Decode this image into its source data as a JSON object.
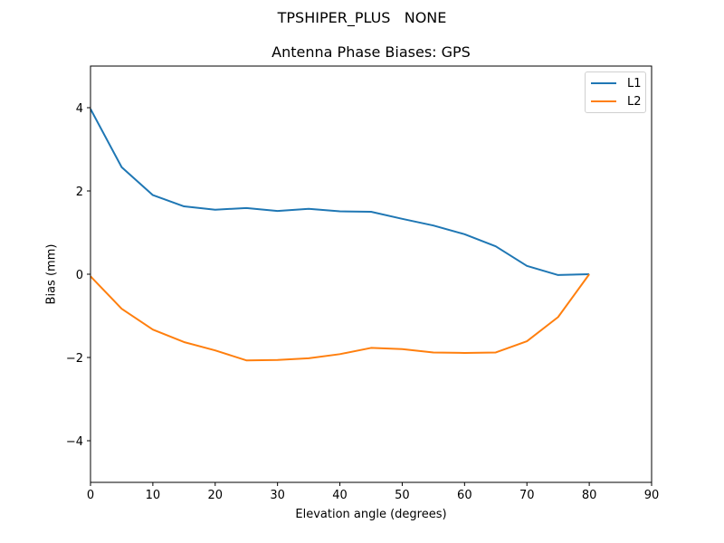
{
  "figure": {
    "suptitle": "TPSHIPER_PLUS   NONE",
    "title": "Antenna Phase Biases: GPS"
  },
  "axes": {
    "xlabel": "Elevation angle (degrees)",
    "ylabel": "Bias (mm)",
    "xticks": [
      "0",
      "10",
      "20",
      "30",
      "40",
      "50",
      "60",
      "70",
      "80",
      "90"
    ],
    "yticks": [
      "4",
      "2",
      "0",
      "−2",
      "−4"
    ]
  },
  "legend": {
    "items": [
      {
        "label": "L1",
        "color": "#1f77b4"
      },
      {
        "label": "L2",
        "color": "#ff7f0e"
      }
    ]
  },
  "chart_data": {
    "type": "line",
    "title": "Antenna Phase Biases: GPS",
    "suptitle": "TPSHIPER_PLUS   NONE",
    "xlabel": "Elevation angle (degrees)",
    "ylabel": "Bias (mm)",
    "xlim": [
      0,
      90
    ],
    "ylim": [
      -5,
      5
    ],
    "xticks": [
      0,
      10,
      20,
      30,
      40,
      50,
      60,
      70,
      80,
      90
    ],
    "yticks": [
      -4,
      -2,
      0,
      2,
      4
    ],
    "grid": false,
    "legend_position": "upper right",
    "x": [
      0,
      5,
      10,
      15,
      20,
      25,
      30,
      35,
      40,
      45,
      50,
      55,
      60,
      65,
      70,
      75,
      80
    ],
    "series": [
      {
        "name": "L1",
        "color": "#1f77b4",
        "values": [
          3.97,
          2.57,
          1.9,
          1.63,
          1.55,
          1.59,
          1.52,
          1.57,
          1.51,
          1.5,
          1.33,
          1.17,
          0.96,
          0.67,
          0.2,
          -0.02,
          0.0
        ]
      },
      {
        "name": "L2",
        "color": "#ff7f0e",
        "values": [
          -0.05,
          -0.83,
          -1.33,
          -1.63,
          -1.83,
          -2.07,
          -2.06,
          -2.02,
          -1.92,
          -1.77,
          -1.8,
          -1.88,
          -1.89,
          -1.88,
          -1.61,
          -1.03,
          0.0
        ]
      }
    ]
  }
}
